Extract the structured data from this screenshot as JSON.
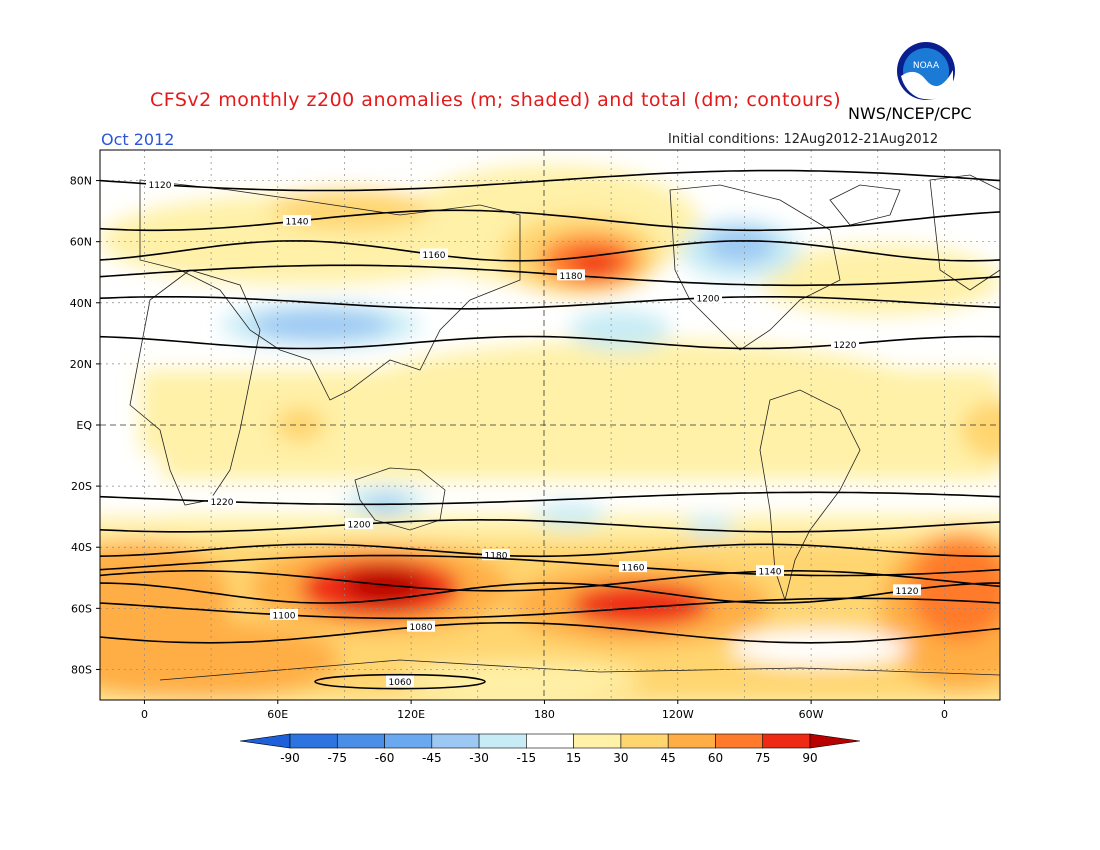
{
  "title": "CFSv2 monthly z200 anomalies (m; shaded) and total (dm; contours)",
  "org": "NWS/NCEP/CPC",
  "month": "Oct 2012",
  "initial_conditions": "Initial conditions: 12Aug2012-21Aug2012",
  "logo_text": "NOAA",
  "axes": {
    "lat_labels": [
      "80N",
      "60N",
      "40N",
      "20N",
      "EQ",
      "20S",
      "40S",
      "60S",
      "80S"
    ],
    "lat_values": [
      80,
      60,
      40,
      20,
      0,
      -20,
      -40,
      -60,
      -80
    ],
    "lon_labels": [
      "0",
      "60E",
      "120E",
      "180",
      "120W",
      "60W",
      "0"
    ],
    "lon_values": [
      0,
      60,
      120,
      180,
      240,
      300,
      360
    ]
  },
  "colorbar": {
    "labels": [
      "-90",
      "-75",
      "-60",
      "-45",
      "-30",
      "-15",
      "15",
      "30",
      "45",
      "60",
      "75",
      "90"
    ],
    "colors": [
      "#1f5fd9",
      "#2d74e0",
      "#4a8ee8",
      "#6aa8ef",
      "#9cc8f3",
      "#c8ecf5",
      "#ffffff",
      "#fff1a8",
      "#ffd570",
      "#ffae45",
      "#ff7a2a",
      "#ee2a14",
      "#b80000"
    ]
  },
  "contours": [
    {
      "label": "1120",
      "lat": 80
    },
    {
      "label": "1140",
      "lat": 67
    },
    {
      "label": "1160",
      "lat": 57
    },
    {
      "label": "1180",
      "lat": 49
    },
    {
      "label": "1200",
      "lat": 40
    },
    {
      "label": "1220",
      "lat": 27
    },
    {
      "label": "1220",
      "lat": -24
    },
    {
      "label": "1200",
      "lat": -33
    },
    {
      "label": "1180",
      "lat": -41
    },
    {
      "label": "1160",
      "lat": -46
    },
    {
      "label": "1140",
      "lat": -51
    },
    {
      "label": "1120",
      "lat": -55
    },
    {
      "label": "1100",
      "lat": -60
    },
    {
      "label": "1080",
      "lat": -68
    },
    {
      "label": "1060",
      "lat": -84
    }
  ]
}
